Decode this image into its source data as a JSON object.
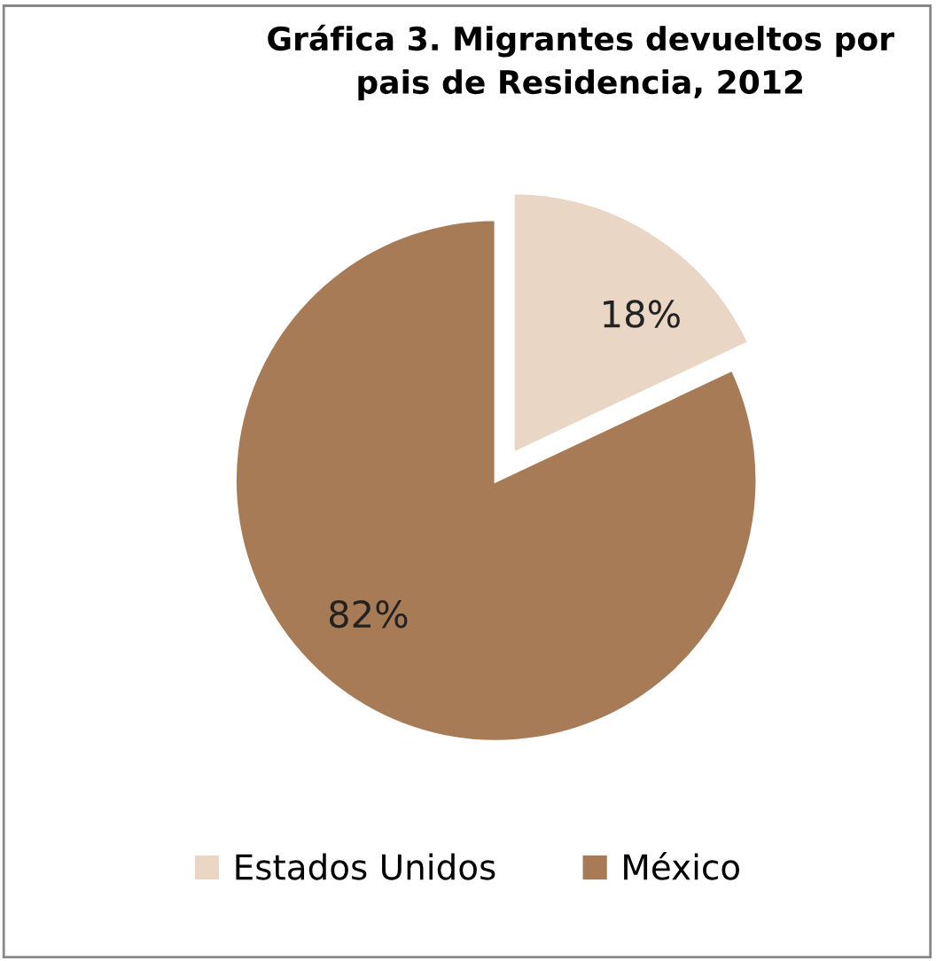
{
  "chart_data": {
    "type": "pie",
    "title": "Gráfica 3. Migrantes devueltos por\npais de Residencia, 2012",
    "categories": [
      "Estados Unidos",
      "México"
    ],
    "values": [
      18,
      82
    ],
    "colors": [
      "#ead6c4",
      "#a67b55"
    ],
    "value_labels": [
      "18%",
      "82%"
    ],
    "legend": "bottom"
  }
}
